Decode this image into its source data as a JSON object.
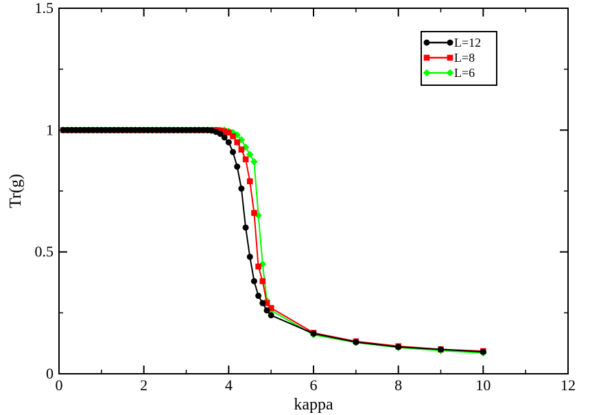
{
  "chart_data": {
    "type": "line",
    "title": "",
    "xlabel": "kappa",
    "ylabel": "Tr(g)",
    "xlim": [
      0,
      12
    ],
    "ylim": [
      0,
      1.5
    ],
    "xticks": [
      0,
      2,
      4,
      6,
      8,
      10,
      12
    ],
    "yticks": [
      0,
      0.5,
      1,
      1.5
    ],
    "xtick_labels": [
      "0",
      "2",
      "4",
      "6",
      "8",
      "10",
      "12"
    ],
    "ytick_labels": [
      "0",
      "0.5",
      "1",
      "1.5"
    ],
    "grid": false,
    "legend_position": "top-right",
    "series": [
      {
        "name": "L=12",
        "color": "#000000",
        "marker": "circle",
        "x": [
          0.1,
          0.2,
          0.3,
          0.4,
          0.5,
          0.6,
          0.7,
          0.8,
          0.9,
          1.0,
          1.1,
          1.2,
          1.3,
          1.4,
          1.5,
          1.6,
          1.7,
          1.8,
          1.9,
          2.0,
          2.1,
          2.2,
          2.3,
          2.4,
          2.5,
          2.6,
          2.7,
          2.8,
          2.9,
          3.0,
          3.1,
          3.2,
          3.3,
          3.4,
          3.5,
          3.6,
          3.7,
          3.8,
          3.9,
          4.0,
          4.1,
          4.2,
          4.3,
          4.4,
          4.5,
          4.6,
          4.7,
          4.8,
          4.9,
          5.0,
          6,
          7,
          8,
          9,
          10
        ],
        "y": [
          1.0,
          1.0,
          1.0,
          1.0,
          1.0,
          1.0,
          1.0,
          1.0,
          1.0,
          1.0,
          1.0,
          1.0,
          1.0,
          1.0,
          1.0,
          1.0,
          1.0,
          1.0,
          1.0,
          1.0,
          1.0,
          1.0,
          1.0,
          1.0,
          1.0,
          1.0,
          1.0,
          1.0,
          1.0,
          1.0,
          1.0,
          1.0,
          1.0,
          1.0,
          1.0,
          0.998,
          0.993,
          0.985,
          0.97,
          0.95,
          0.91,
          0.85,
          0.76,
          0.6,
          0.48,
          0.38,
          0.32,
          0.29,
          0.26,
          0.24,
          0.165,
          0.13,
          0.11,
          0.1,
          0.09
        ]
      },
      {
        "name": "L=8",
        "color": "#ff0000",
        "marker": "square",
        "x": [
          0.1,
          0.2,
          0.3,
          0.4,
          0.5,
          0.6,
          0.7,
          0.8,
          0.9,
          1.0,
          1.1,
          1.2,
          1.3,
          1.4,
          1.5,
          1.6,
          1.7,
          1.8,
          1.9,
          2.0,
          2.1,
          2.2,
          2.3,
          2.4,
          2.5,
          2.6,
          2.7,
          2.8,
          2.9,
          3.0,
          3.1,
          3.2,
          3.3,
          3.4,
          3.5,
          3.6,
          3.7,
          3.8,
          3.9,
          4.0,
          4.1,
          4.2,
          4.3,
          4.4,
          4.5,
          4.6,
          4.7,
          4.8,
          4.9,
          5.0,
          6,
          7,
          8,
          9,
          10
        ],
        "y": [
          1.0,
          1.0,
          1.0,
          1.0,
          1.0,
          1.0,
          1.0,
          1.0,
          1.0,
          1.0,
          1.0,
          1.0,
          1.0,
          1.0,
          1.0,
          1.0,
          1.0,
          1.0,
          1.0,
          1.0,
          1.0,
          1.0,
          1.0,
          1.0,
          1.0,
          1.0,
          1.0,
          1.0,
          1.0,
          1.0,
          1.0,
          1.0,
          1.0,
          1.0,
          1.0,
          1.0,
          1.0,
          0.998,
          0.995,
          0.99,
          0.975,
          0.95,
          0.92,
          0.88,
          0.79,
          0.66,
          0.44,
          0.38,
          0.29,
          0.27,
          0.168,
          0.133,
          0.113,
          0.1,
          0.093
        ]
      },
      {
        "name": "L=6",
        "color": "#00ff00",
        "marker": "diamond",
        "x": [
          0.1,
          0.2,
          0.3,
          0.4,
          0.5,
          0.6,
          0.7,
          0.8,
          0.9,
          1.0,
          1.1,
          1.2,
          1.3,
          1.4,
          1.5,
          1.6,
          1.7,
          1.8,
          1.9,
          2.0,
          2.1,
          2.2,
          2.3,
          2.4,
          2.5,
          2.6,
          2.7,
          2.8,
          2.9,
          3.0,
          3.1,
          3.2,
          3.3,
          3.4,
          3.5,
          3.6,
          3.7,
          3.8,
          3.9,
          4.0,
          4.1,
          4.2,
          4.3,
          4.4,
          4.5,
          4.6,
          4.7,
          4.8,
          4.9,
          5.0,
          6,
          7,
          8,
          9,
          10
        ],
        "y": [
          1.0,
          1.0,
          1.0,
          1.0,
          1.0,
          1.0,
          1.0,
          1.0,
          1.0,
          1.0,
          1.0,
          1.0,
          1.0,
          1.0,
          1.0,
          1.0,
          1.0,
          1.0,
          1.0,
          1.0,
          1.0,
          1.0,
          1.0,
          1.0,
          1.0,
          1.0,
          1.0,
          1.0,
          1.0,
          1.0,
          1.0,
          1.0,
          1.0,
          1.0,
          1.0,
          1.0,
          1.0,
          1.0,
          1.0,
          0.995,
          0.99,
          0.98,
          0.96,
          0.93,
          0.9,
          0.87,
          0.65,
          0.45,
          0.3,
          0.26,
          0.16,
          0.128,
          0.108,
          0.095,
          0.085
        ]
      }
    ]
  }
}
